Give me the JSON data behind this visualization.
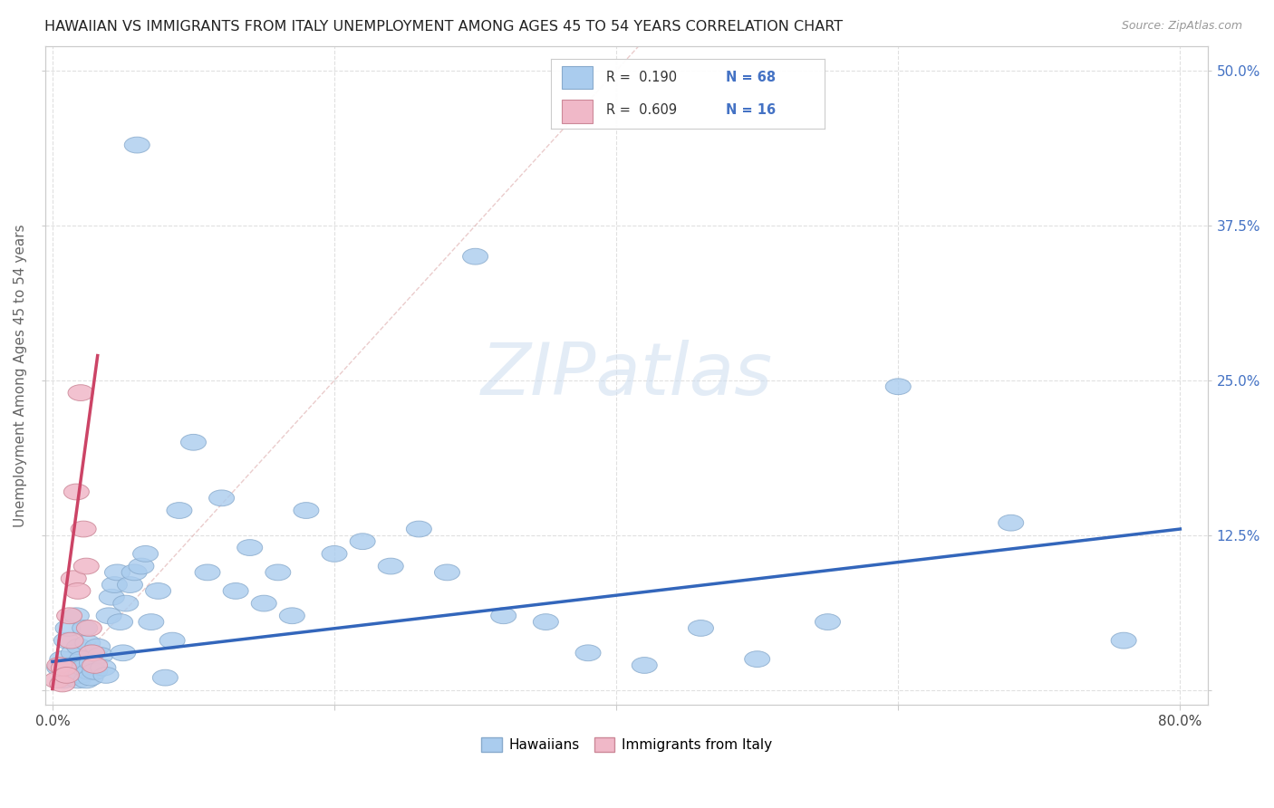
{
  "title": "HAWAIIAN VS IMMIGRANTS FROM ITALY UNEMPLOYMENT AMONG AGES 45 TO 54 YEARS CORRELATION CHART",
  "source": "Source: ZipAtlas.com",
  "ylabel": "Unemployment Among Ages 45 to 54 years",
  "xlim": [
    -0.005,
    0.82
  ],
  "ylim": [
    -0.012,
    0.52
  ],
  "xtick_positions": [
    0.0,
    0.2,
    0.4,
    0.6,
    0.8
  ],
  "xtick_labels": [
    "0.0%",
    "",
    "",
    "",
    "80.0%"
  ],
  "ytick_positions": [
    0.0,
    0.125,
    0.25,
    0.375,
    0.5
  ],
  "ytick_labels_right": [
    "",
    "12.5%",
    "25.0%",
    "37.5%",
    "50.0%"
  ],
  "hawaiian_color": "#aaccee",
  "hawaii_edge_color": "#88aacc",
  "italy_color": "#f0b8c8",
  "italy_edge_color": "#cc8898",
  "trend_hawaiian_color": "#3366bb",
  "trend_italy_color": "#cc4466",
  "ref_line_color": "#ddaaaa",
  "watermark_text": "ZIPatlas",
  "watermark_color": "#cdddf0",
  "title_color": "#222222",
  "source_color": "#999999",
  "axis_label_color": "#666666",
  "right_axis_color": "#4472c4",
  "grid_color": "#dddddd",
  "title_fontsize": 11.5,
  "tick_fontsize": 11,
  "hawaiian_x": [
    0.005,
    0.007,
    0.008,
    0.01,
    0.011,
    0.012,
    0.013,
    0.015,
    0.016,
    0.017,
    0.018,
    0.019,
    0.02,
    0.021,
    0.022,
    0.023,
    0.024,
    0.025,
    0.026,
    0.027,
    0.028,
    0.03,
    0.032,
    0.034,
    0.036,
    0.038,
    0.04,
    0.042,
    0.044,
    0.046,
    0.048,
    0.05,
    0.052,
    0.055,
    0.058,
    0.06,
    0.063,
    0.066,
    0.07,
    0.075,
    0.08,
    0.085,
    0.09,
    0.1,
    0.11,
    0.12,
    0.13,
    0.14,
    0.15,
    0.16,
    0.17,
    0.18,
    0.2,
    0.22,
    0.24,
    0.26,
    0.28,
    0.3,
    0.32,
    0.35,
    0.38,
    0.42,
    0.46,
    0.5,
    0.55,
    0.6,
    0.68,
    0.76
  ],
  "hawaiian_y": [
    0.018,
    0.025,
    0.008,
    0.04,
    0.05,
    0.02,
    0.01,
    0.03,
    0.015,
    0.06,
    0.008,
    0.035,
    0.012,
    0.025,
    0.018,
    0.05,
    0.008,
    0.038,
    0.015,
    0.01,
    0.022,
    0.015,
    0.035,
    0.028,
    0.018,
    0.012,
    0.06,
    0.075,
    0.085,
    0.095,
    0.055,
    0.03,
    0.07,
    0.085,
    0.095,
    0.44,
    0.1,
    0.11,
    0.055,
    0.08,
    0.01,
    0.04,
    0.145,
    0.2,
    0.095,
    0.155,
    0.08,
    0.115,
    0.07,
    0.095,
    0.06,
    0.145,
    0.11,
    0.12,
    0.1,
    0.13,
    0.095,
    0.35,
    0.06,
    0.055,
    0.03,
    0.02,
    0.05,
    0.025,
    0.055,
    0.245,
    0.135,
    0.04
  ],
  "italy_x": [
    0.003,
    0.005,
    0.007,
    0.008,
    0.01,
    0.012,
    0.013,
    0.015,
    0.017,
    0.018,
    0.02,
    0.022,
    0.024,
    0.026,
    0.028,
    0.03
  ],
  "italy_y": [
    0.008,
    0.02,
    0.005,
    0.018,
    0.012,
    0.06,
    0.04,
    0.09,
    0.16,
    0.08,
    0.24,
    0.13,
    0.1,
    0.05,
    0.03,
    0.02
  ]
}
